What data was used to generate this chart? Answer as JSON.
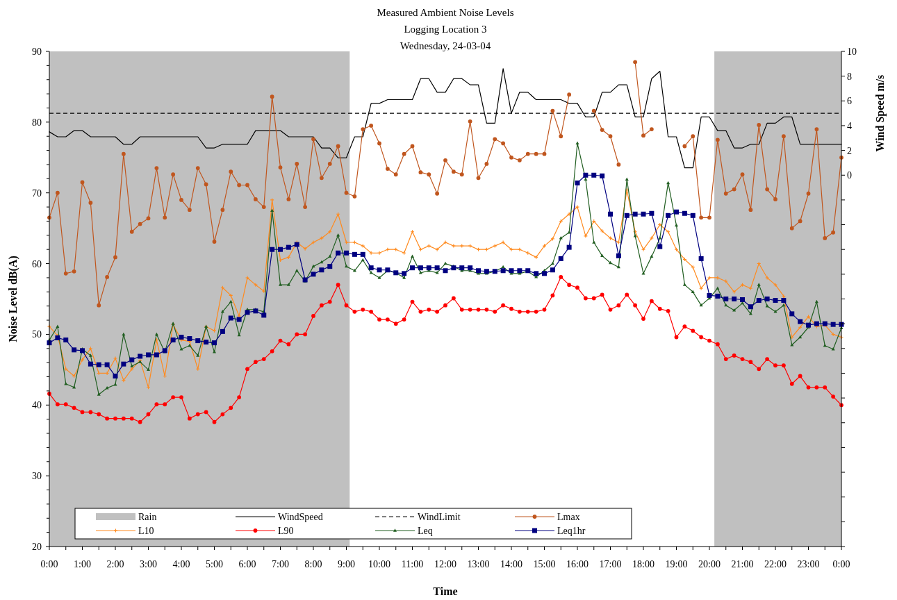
{
  "chart_data": {
    "type": "line",
    "title": "Measured Ambient Noise Levels\nLogging Location 3\nWednesday, 24-03-04",
    "xlabel": "Time",
    "ylabel": "Noise Level dB(A)",
    "y2label": "Wind Speed m/s",
    "x": [
      0,
      0.25,
      0.5,
      0.75,
      1,
      1.25,
      1.5,
      1.75,
      2,
      2.25,
      2.5,
      2.75,
      3,
      3.25,
      3.5,
      3.75,
      4,
      4.25,
      4.5,
      4.75,
      5,
      5.25,
      5.5,
      5.75,
      6,
      6.25,
      6.5,
      6.75,
      7,
      7.25,
      7.5,
      7.75,
      8,
      8.25,
      8.5,
      8.75,
      9,
      9.25,
      9.5,
      9.75,
      10,
      10.25,
      10.5,
      10.75,
      11,
      11.25,
      11.5,
      11.75,
      12,
      12.25,
      12.5,
      12.75,
      13,
      13.25,
      13.5,
      13.75,
      14,
      14.25,
      14.5,
      14.75,
      15,
      15.25,
      15.5,
      15.75,
      16,
      16.25,
      16.5,
      16.75,
      17,
      17.25,
      17.5,
      17.75,
      18,
      18.25,
      18.5,
      18.75,
      19,
      19.25,
      19.5,
      19.75,
      20,
      20.25,
      20.5,
      20.75,
      21,
      21.25,
      21.5,
      21.75,
      22,
      22.25,
      22.5,
      22.75,
      23,
      23.25,
      23.5,
      23.75,
      24
    ],
    "xlim": [
      0,
      24
    ],
    "xticks": [
      {
        "value": 0,
        "label": "0:00"
      },
      {
        "value": 0.5,
        "label": null
      },
      {
        "value": 1,
        "label": "1:00"
      },
      {
        "value": 1.5,
        "label": null
      },
      {
        "value": 2,
        "label": "2:00"
      },
      {
        "value": 2.5,
        "label": null
      },
      {
        "value": 3,
        "label": "3:00"
      },
      {
        "value": 3.5,
        "label": null
      },
      {
        "value": 4,
        "label": "4:00"
      },
      {
        "value": 4.5,
        "label": null
      },
      {
        "value": 5,
        "label": "5:00"
      },
      {
        "value": 5.5,
        "label": null
      },
      {
        "value": 6,
        "label": "6:00"
      },
      {
        "value": 6.5,
        "label": null
      },
      {
        "value": 7,
        "label": "7:00"
      },
      {
        "value": 7.5,
        "label": null
      },
      {
        "value": 8,
        "label": "8:00"
      },
      {
        "value": 8.5,
        "label": null
      },
      {
        "value": 9,
        "label": "9:00"
      },
      {
        "value": 9.5,
        "label": null
      },
      {
        "value": 10,
        "label": "10:00"
      },
      {
        "value": 10.5,
        "label": null
      },
      {
        "value": 11,
        "label": "11:00"
      },
      {
        "value": 11.5,
        "label": null
      },
      {
        "value": 12,
        "label": "12:00"
      },
      {
        "value": 12.5,
        "label": null
      },
      {
        "value": 13,
        "label": "13:00"
      },
      {
        "value": 13.5,
        "label": null
      },
      {
        "value": 14,
        "label": "14:00"
      },
      {
        "value": 14.5,
        "label": null
      },
      {
        "value": 15,
        "label": "15:00"
      },
      {
        "value": 15.5,
        "label": null
      },
      {
        "value": 16,
        "label": "16:00"
      },
      {
        "value": 16.5,
        "label": null
      },
      {
        "value": 17,
        "label": "17:00"
      },
      {
        "value": 17.5,
        "label": null
      },
      {
        "value": 18,
        "label": "18:00"
      },
      {
        "value": 18.5,
        "label": null
      },
      {
        "value": 19,
        "label": "19:00"
      },
      {
        "value": 19.5,
        "label": null
      },
      {
        "value": 20,
        "label": "20:00"
      },
      {
        "value": 20.5,
        "label": null
      },
      {
        "value": 21,
        "label": "21:00"
      },
      {
        "value": 21.5,
        "label": null
      },
      {
        "value": 22,
        "label": "22:00"
      },
      {
        "value": 22.5,
        "label": null
      },
      {
        "value": 23,
        "label": "23:00"
      },
      {
        "value": 23.5,
        "label": null
      },
      {
        "value": 24,
        "label": "0:00"
      }
    ],
    "ylim": [
      20,
      90
    ],
    "yticks": [
      20,
      {
        "value": 22,
        "label": null
      },
      {
        "value": 24,
        "label": null
      },
      {
        "value": 26,
        "label": null
      },
      {
        "value": 28,
        "label": null
      },
      30,
      {
        "value": 32,
        "label": null
      },
      {
        "value": 34,
        "label": null
      },
      {
        "value": 36,
        "label": null
      },
      {
        "value": 38,
        "label": null
      },
      40,
      {
        "value": 42,
        "label": null
      },
      {
        "value": 44,
        "label": null
      },
      {
        "value": 46,
        "label": null
      },
      {
        "value": 48,
        "label": null
      },
      50,
      {
        "value": 52,
        "label": null
      },
      {
        "value": 54,
        "label": null
      },
      {
        "value": 56,
        "label": null
      },
      {
        "value": 58,
        "label": null
      },
      60,
      {
        "value": 62,
        "label": null
      },
      {
        "value": 64,
        "label": null
      },
      {
        "value": 66,
        "label": null
      },
      {
        "value": 68,
        "label": null
      },
      70,
      {
        "value": 72,
        "label": null
      },
      {
        "value": 74,
        "label": null
      },
      {
        "value": 76,
        "label": null
      },
      {
        "value": 78,
        "label": null
      },
      80,
      {
        "value": 82,
        "label": null
      },
      {
        "value": 84,
        "label": null
      },
      {
        "value": 86,
        "label": null
      },
      {
        "value": 88,
        "label": null
      },
      90
    ],
    "y2lim": [
      -30,
      10
    ],
    "y2ticks": [
      {
        "value": -30,
        "label": null
      },
      {
        "value": -28,
        "label": null
      },
      {
        "value": -26,
        "label": null
      },
      {
        "value": -24,
        "label": null
      },
      {
        "value": -22,
        "label": null
      },
      {
        "value": -20,
        "label": null
      },
      {
        "value": -18,
        "label": null
      },
      {
        "value": -16,
        "label": null
      },
      {
        "value": -14,
        "label": null
      },
      {
        "value": -12,
        "label": null
      },
      {
        "value": -10,
        "label": null
      },
      {
        "value": -8,
        "label": null
      },
      {
        "value": -6,
        "label": null
      },
      {
        "value": -4,
        "label": null
      },
      {
        "value": -2,
        "label": null
      },
      0,
      2,
      4,
      6,
      8,
      10
    ],
    "bands": [
      {
        "axis": "x",
        "from": 0,
        "to": 9.1,
        "label": "Rain",
        "color": "#c0c0c0"
      },
      {
        "axis": "x",
        "from": 20.15,
        "to": 24,
        "color": "#c0c0c0"
      }
    ],
    "ref_lines": [
      {
        "axis": "y2",
        "value": 5,
        "label": "WindLimit",
        "color": "#000000",
        "line_style": "dashed"
      }
    ],
    "legend": "bottom left",
    "series": [
      {
        "name": "WindSpeed",
        "color": "#000000",
        "axis": "y2",
        "marker": "none",
        "values": [
          3.5,
          3.1,
          3.1,
          3.6,
          3.6,
          3.1,
          3.1,
          3.1,
          3.1,
          2.5,
          2.5,
          3.1,
          3.1,
          3.1,
          3.1,
          3.1,
          3.1,
          3.1,
          3.1,
          2.2,
          2.2,
          2.5,
          2.5,
          2.5,
          2.5,
          3.6,
          3.6,
          3.6,
          3.6,
          3.1,
          3.1,
          3.1,
          3.1,
          2.2,
          2.2,
          1.4,
          1.4,
          3.1,
          3.1,
          5.8,
          5.8,
          6.1,
          6.1,
          6.1,
          6.1,
          7.8,
          7.8,
          6.7,
          6.7,
          7.8,
          7.8,
          7.3,
          7.3,
          4.2,
          4.2,
          8.6,
          5.0,
          6.7,
          6.7,
          6.1,
          6.1,
          6.1,
          6.1,
          5.8,
          5.8,
          4.7,
          4.7,
          6.7,
          6.7,
          7.3,
          7.3,
          4.7,
          4.7,
          7.8,
          8.4,
          3.1,
          3.1,
          0.6,
          0.6,
          4.7,
          4.7,
          3.6,
          3.6,
          2.2,
          2.2,
          2.5,
          2.5,
          4.2,
          4.2,
          4.7,
          4.7,
          2.5,
          2.5,
          2.5,
          2.5,
          2.5,
          2.5
        ]
      },
      {
        "name": "Lmax",
        "color": "#c0561e",
        "marker": "circle",
        "values": [
          66.5,
          70.0,
          58.6,
          58.9,
          71.5,
          68.6,
          54.1,
          58.1,
          60.9,
          75.5,
          64.5,
          65.6,
          66.4,
          73.5,
          66.5,
          72.6,
          69.0,
          67.6,
          73.5,
          71.2,
          63.1,
          67.6,
          73.0,
          71.1,
          71.1,
          69.1,
          68.0,
          83.6,
          73.6,
          69.1,
          74.1,
          68.0,
          77.6,
          72.1,
          74.1,
          76.6,
          70.0,
          69.5,
          79.0,
          79.5,
          77.0,
          73.4,
          72.6,
          75.5,
          76.6,
          72.9,
          72.6,
          69.9,
          74.6,
          73.0,
          72.6,
          80.1,
          72.1,
          74.1,
          77.6,
          77.0,
          75.0,
          74.6,
          75.5,
          75.5,
          75.5,
          81.6,
          78.0,
          83.9,
          null,
          null,
          81.6,
          78.9,
          78.0,
          74.0,
          null,
          88.5,
          78.1,
          79.0,
          null,
          null,
          null,
          76.6,
          78.0,
          66.5,
          66.5,
          77.5,
          69.9,
          70.5,
          72.6,
          67.6,
          79.6,
          70.5,
          69.1,
          78.0,
          65.0,
          66.0,
          69.9,
          79.0,
          63.6,
          64.4,
          75.0
        ]
      },
      {
        "name": "L10",
        "color": "#ff8a1e",
        "marker": "cross",
        "values": [
          51.1,
          49.8,
          45.1,
          44.1,
          46.4,
          48.0,
          44.5,
          44.5,
          46.6,
          43.5,
          45.1,
          46.3,
          42.5,
          49.2,
          44.1,
          51.4,
          49.2,
          49.0,
          45.1,
          51.1,
          50.5,
          56.6,
          55.5,
          52.6,
          58.0,
          57.0,
          56.1,
          69.0,
          60.5,
          60.9,
          63.0,
          62.1,
          63.0,
          63.6,
          64.5,
          67.0,
          63.0,
          63.0,
          62.5,
          61.5,
          61.5,
          62.0,
          62.0,
          61.5,
          64.5,
          62.0,
          62.5,
          62.0,
          63.0,
          62.5,
          62.5,
          62.5,
          62.0,
          62.0,
          62.5,
          63.0,
          62.0,
          62.0,
          61.5,
          60.9,
          62.5,
          63.5,
          66.0,
          67.0,
          68.0,
          63.9,
          66.0,
          64.6,
          63.6,
          63.0,
          70.4,
          64.5,
          62.0,
          63.6,
          65.5,
          64.5,
          62.0,
          60.6,
          59.5,
          56.5,
          58.0,
          58.0,
          57.5,
          56.0,
          57.0,
          56.5,
          60.0,
          58.0,
          57.0,
          55.4,
          49.6,
          51.0,
          52.5,
          51.1,
          51.3,
          50.0,
          49.6
        ]
      },
      {
        "name": "L90",
        "color": "#ff0000",
        "marker": "circle",
        "values": [
          41.6,
          40.1,
          40.1,
          39.6,
          39.0,
          39.0,
          38.7,
          38.1,
          38.1,
          38.1,
          38.1,
          37.6,
          38.7,
          40.1,
          40.1,
          41.1,
          41.1,
          38.1,
          38.7,
          39.0,
          37.6,
          38.7,
          39.6,
          41.1,
          45.1,
          46.1,
          46.5,
          47.6,
          49.1,
          48.6,
          50.0,
          50.0,
          52.6,
          54.1,
          54.6,
          57.0,
          54.1,
          53.2,
          53.5,
          53.2,
          52.1,
          52.1,
          51.5,
          52.1,
          54.6,
          53.2,
          53.5,
          53.2,
          54.1,
          55.1,
          53.5,
          53.5,
          53.5,
          53.5,
          53.2,
          54.1,
          53.6,
          53.2,
          53.2,
          53.2,
          53.5,
          55.5,
          58.1,
          57.0,
          56.6,
          55.1,
          55.1,
          55.6,
          53.5,
          54.1,
          55.6,
          54.1,
          52.2,
          54.7,
          53.6,
          53.3,
          49.6,
          51.1,
          50.5,
          49.6,
          49.1,
          48.6,
          46.5,
          47.0,
          46.5,
          46.1,
          45.1,
          46.5,
          45.6,
          45.6,
          43.0,
          44.1,
          42.5,
          42.5,
          42.5,
          41.2,
          40.0
        ]
      },
      {
        "name": "Leq",
        "color": "#215e21",
        "marker": "triangle",
        "values": [
          49.2,
          51.1,
          43.0,
          42.5,
          47.9,
          47.0,
          41.5,
          42.4,
          42.9,
          50.0,
          45.5,
          46.1,
          45.0,
          50.0,
          47.5,
          51.5,
          47.9,
          48.4,
          47.0,
          51.1,
          47.5,
          53.2,
          54.6,
          49.9,
          53.5,
          53.5,
          53.2,
          67.5,
          57.0,
          57.0,
          59.0,
          57.5,
          59.6,
          60.2,
          61.0,
          64.0,
          59.6,
          59.0,
          60.5,
          58.7,
          58.0,
          59.0,
          58.7,
          58.0,
          61.0,
          58.7,
          59.0,
          58.7,
          60.0,
          59.6,
          59.0,
          59.0,
          58.6,
          58.6,
          58.9,
          59.5,
          58.6,
          58.6,
          58.9,
          58.1,
          59.0,
          60.0,
          63.6,
          64.4,
          77.0,
          71.9,
          63.0,
          61.1,
          60.1,
          59.5,
          71.9,
          63.9,
          58.6,
          61.0,
          63.6,
          71.4,
          65.4,
          57.0,
          56.0,
          54.1,
          55.1,
          56.5,
          54.1,
          53.4,
          54.4,
          52.9,
          57.0,
          54.0,
          53.2,
          54.1,
          48.5,
          49.6,
          51.0,
          54.6,
          48.4,
          47.9,
          50.9
        ]
      },
      {
        "name": "Leq1hr",
        "color": "#000080",
        "marker": "square",
        "values": [
          48.8,
          49.5,
          49.2,
          47.8,
          47.7,
          45.8,
          45.7,
          45.7,
          44.1,
          45.8,
          46.4,
          46.9,
          47.1,
          47.1,
          47.7,
          49.2,
          49.6,
          49.4,
          49.1,
          48.9,
          48.8,
          50.4,
          52.3,
          52.1,
          53.1,
          53.3,
          52.7,
          62.0,
          62.0,
          62.3,
          62.7,
          57.7,
          58.5,
          59.1,
          59.6,
          61.5,
          61.5,
          61.3,
          61.3,
          59.4,
          59.1,
          59.1,
          58.7,
          58.6,
          59.4,
          59.4,
          59.4,
          59.4,
          59.0,
          59.4,
          59.4,
          59.4,
          59.0,
          58.9,
          58.9,
          59.0,
          59.0,
          59.0,
          59.0,
          58.6,
          58.6,
          59.1,
          60.7,
          62.3,
          71.4,
          72.5,
          72.5,
          72.4,
          67.0,
          61.1,
          66.8,
          67.0,
          67.0,
          67.1,
          62.4,
          66.8,
          67.3,
          67.1,
          66.8,
          60.7,
          55.5,
          55.4,
          55.0,
          55.0,
          54.9,
          53.9,
          54.8,
          55.0,
          54.8,
          54.8,
          52.9,
          51.8,
          51.3,
          51.5,
          51.5,
          51.4,
          51.4
        ]
      }
    ]
  }
}
